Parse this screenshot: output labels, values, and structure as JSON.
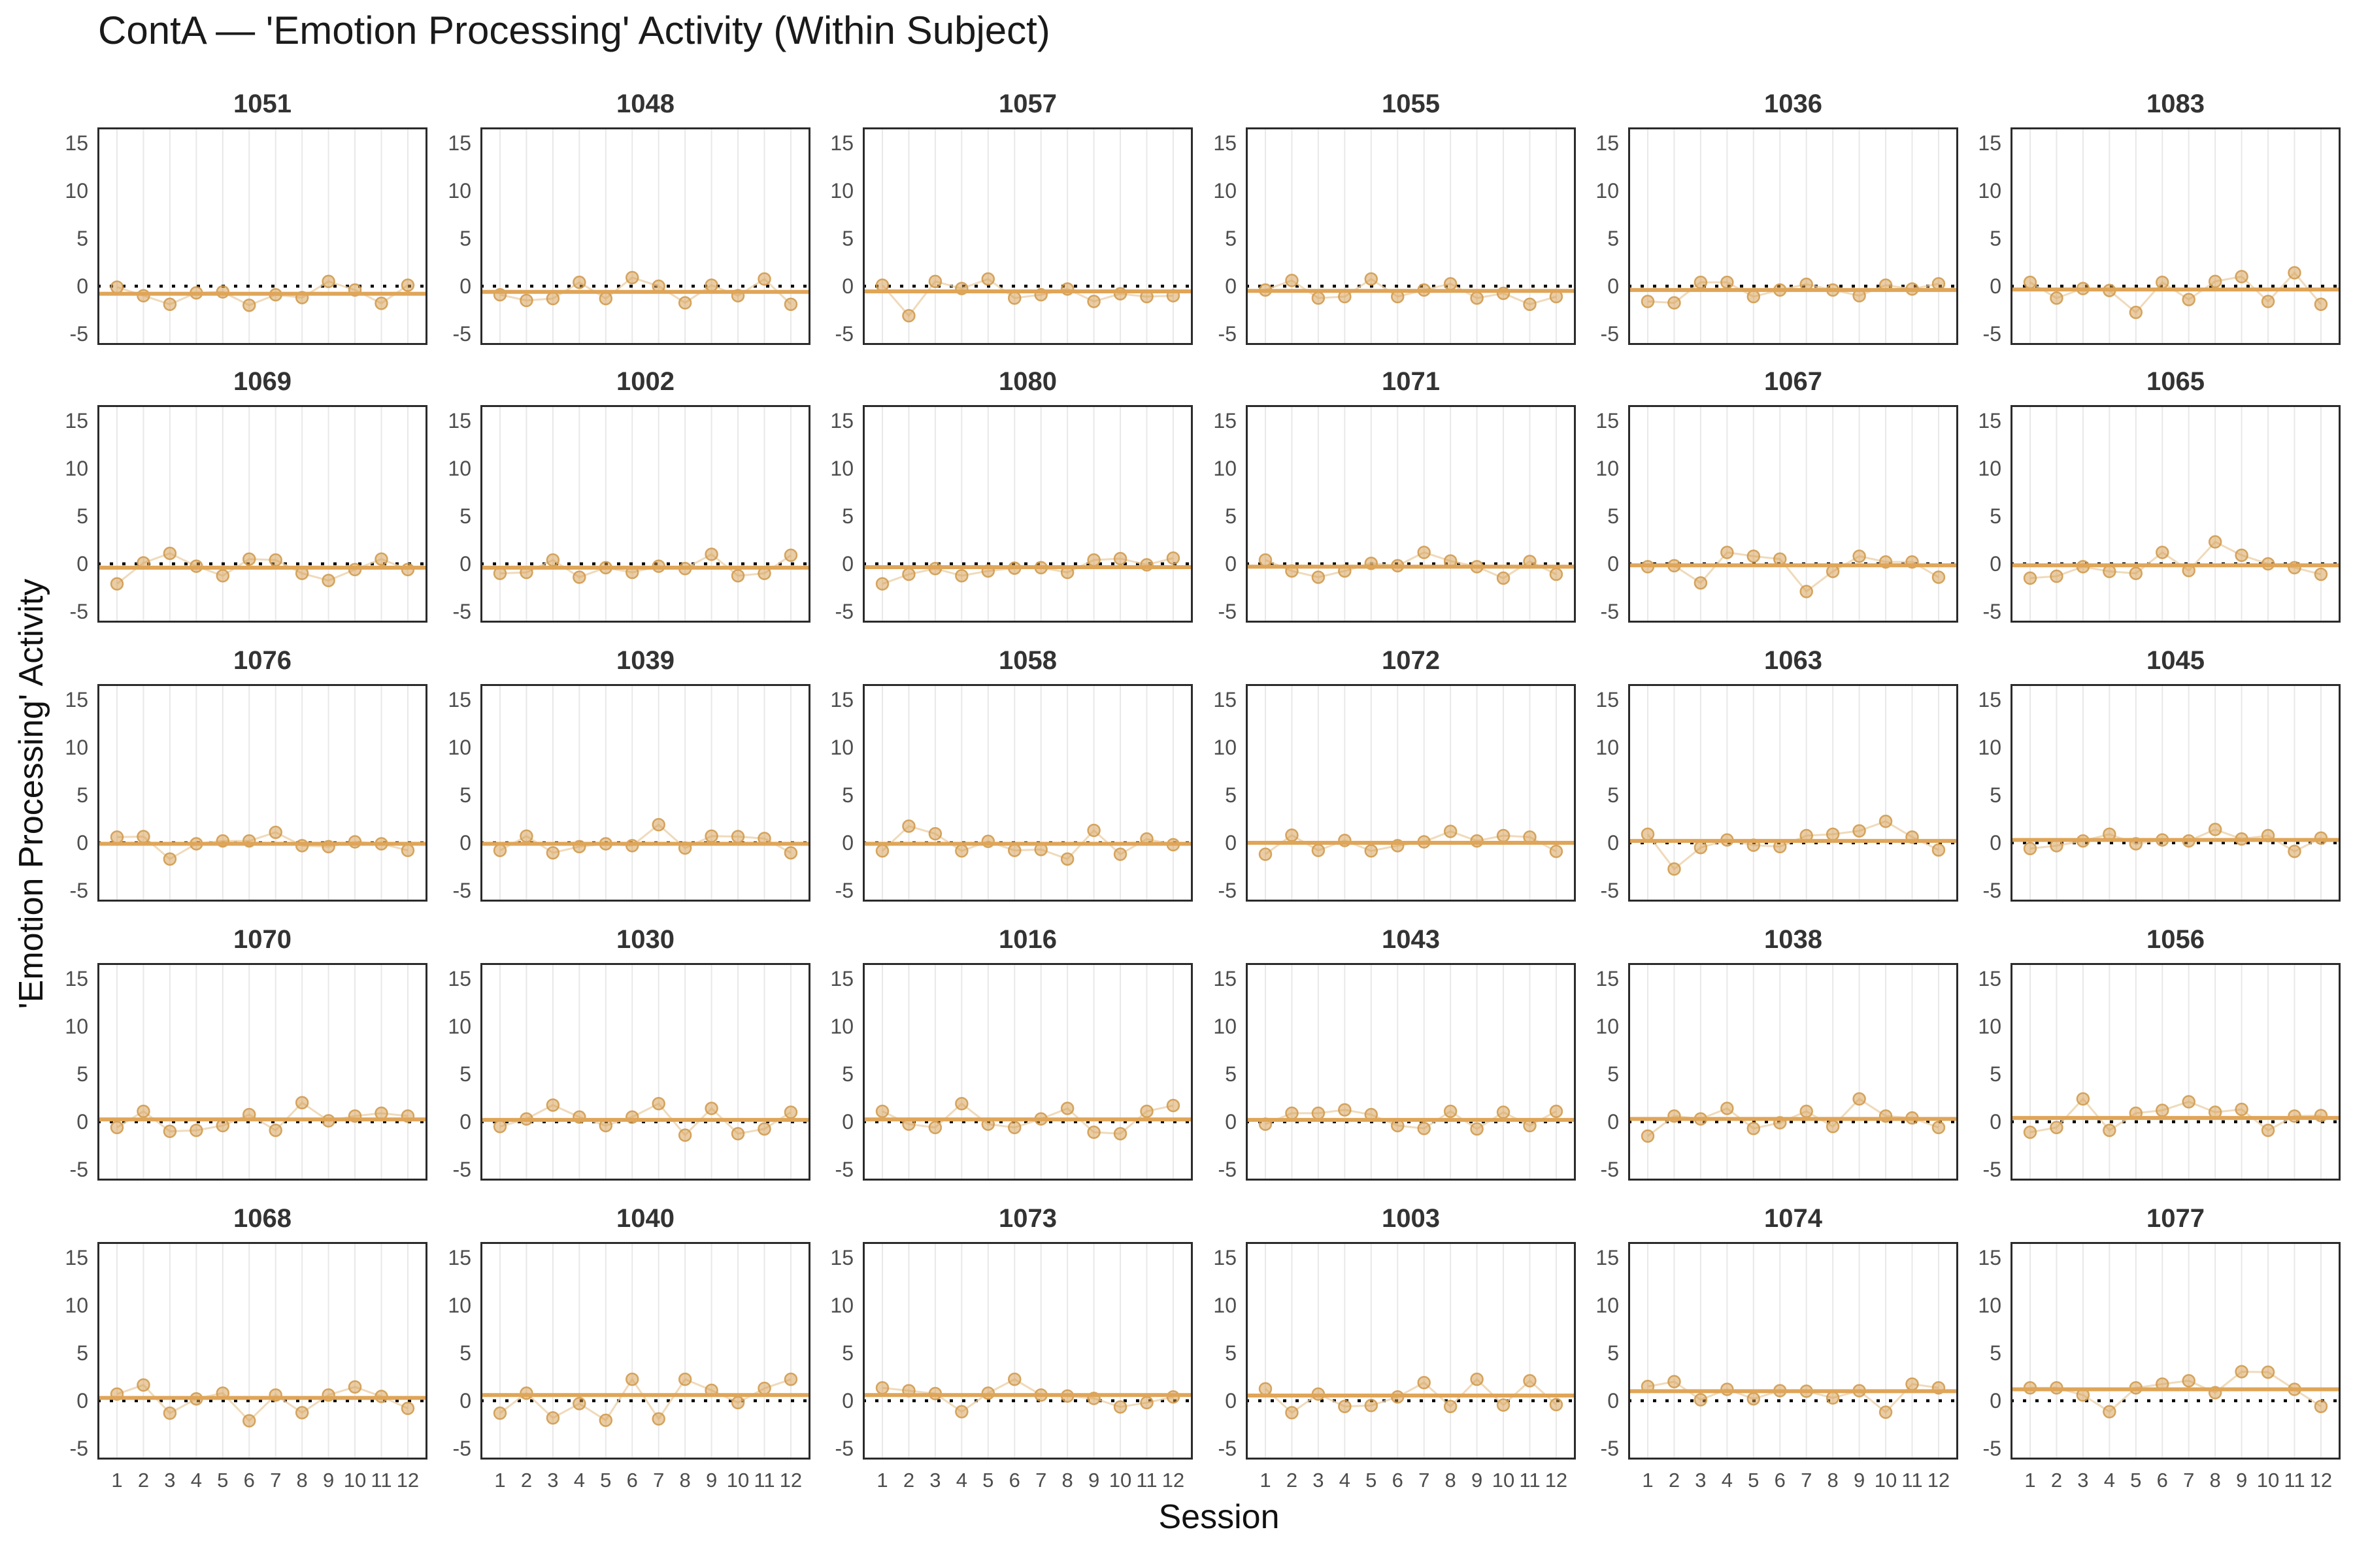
{
  "title": "ContA — 'Emotion Processing' Activity (Within Subject)",
  "chart_data": {
    "type": "scatter",
    "title": "ContA — 'Emotion Processing' Activity (Within Subject)",
    "xlabel": "Session",
    "ylabel": "'Emotion Processing' Activity",
    "x": [
      1,
      2,
      3,
      4,
      5,
      6,
      7,
      8,
      9,
      10,
      11,
      12
    ],
    "x_tick_labels": [
      "1",
      "2",
      "3",
      "4",
      "5",
      "6",
      "7",
      "8",
      "9",
      "10",
      "11",
      "12"
    ],
    "y_ticks": [
      15,
      10,
      5,
      0,
      -5
    ],
    "ylim": [
      -6.2,
      16.6
    ],
    "grid": "vertical-only",
    "legend": "none",
    "reference_line_y": 0,
    "facet_layout": {
      "rows": 5,
      "cols": 6
    },
    "colors": {
      "point_fill": "#d69c4e",
      "point_stroke": "#cf9848",
      "connector": "#e9cda4",
      "trend_line": "#dfa558",
      "zero_line": "#000000",
      "gridline": "#e8e8e8",
      "panel_border": "#2b2b2b",
      "facet_title": "#333333",
      "tick_label": "#4d4d4d",
      "title_color": "#1a1a1a"
    },
    "facets": [
      {
        "id": "1051",
        "trend": -0.8,
        "values": [
          -0.1,
          -1.0,
          -1.9,
          -0.7,
          -0.6,
          -2.0,
          -0.9,
          -1.2,
          0.5,
          -0.4,
          -1.8,
          0.1
        ]
      },
      {
        "id": "1048",
        "trend": -0.6,
        "values": [
          -0.9,
          -1.5,
          -1.3,
          0.4,
          -1.3,
          0.9,
          0.0,
          -1.75,
          0.1,
          -1.0,
          0.75,
          -1.9
        ]
      },
      {
        "id": "1057",
        "trend": -0.55,
        "values": [
          0.1,
          -3.1,
          0.5,
          -0.25,
          0.75,
          -1.25,
          -0.9,
          -0.3,
          -1.6,
          -0.8,
          -1.1,
          -1.0
        ]
      },
      {
        "id": "1055",
        "trend": -0.5,
        "values": [
          -0.4,
          0.6,
          -1.25,
          -1.1,
          0.75,
          -1.1,
          -0.4,
          0.25,
          -1.25,
          -0.75,
          -1.9,
          -1.1
        ]
      },
      {
        "id": "1036",
        "trend": -0.4,
        "values": [
          -1.6,
          -1.75,
          0.4,
          0.4,
          -1.1,
          -0.4,
          0.2,
          -0.4,
          -1.0,
          0.1,
          -0.3,
          0.25
        ]
      },
      {
        "id": "1083",
        "trend": -0.35,
        "values": [
          0.4,
          -1.25,
          -0.25,
          -0.45,
          -2.75,
          0.4,
          -1.4,
          0.5,
          1.0,
          -1.6,
          1.4,
          -1.9
        ]
      },
      {
        "id": "1069",
        "trend": -0.4,
        "values": [
          -2.1,
          0.1,
          1.1,
          -0.25,
          -1.25,
          0.5,
          0.4,
          -1.0,
          -1.75,
          -0.6,
          0.5,
          -0.6
        ]
      },
      {
        "id": "1002",
        "trend": -0.4,
        "values": [
          -1.0,
          -0.9,
          0.4,
          -1.4,
          -0.4,
          -0.9,
          -0.25,
          -0.5,
          1.0,
          -1.25,
          -1.0,
          0.9
        ]
      },
      {
        "id": "1080",
        "trend": -0.35,
        "values": [
          -2.1,
          -1.1,
          -0.5,
          -1.25,
          -0.75,
          -0.45,
          -0.4,
          -0.9,
          0.4,
          0.55,
          -0.1,
          0.6
        ]
      },
      {
        "id": "1071",
        "trend": -0.3,
        "values": [
          0.4,
          -0.75,
          -1.4,
          -0.75,
          0.05,
          -0.2,
          1.2,
          0.3,
          -0.3,
          -1.5,
          0.25,
          -1.1
        ]
      },
      {
        "id": "1067",
        "trend": -0.15,
        "values": [
          -0.3,
          -0.2,
          -2.0,
          1.2,
          0.8,
          0.5,
          -2.9,
          -0.8,
          0.8,
          0.2,
          0.2,
          -1.4
        ]
      },
      {
        "id": "1065",
        "trend": -0.15,
        "values": [
          -1.5,
          -1.3,
          -0.3,
          -0.8,
          -1.0,
          1.2,
          -0.7,
          2.3,
          0.9,
          0.0,
          -0.4,
          -1.1
        ]
      },
      {
        "id": "1076",
        "trend": -0.1,
        "values": [
          0.6,
          0.65,
          -1.7,
          -0.1,
          0.2,
          0.2,
          1.1,
          -0.3,
          -0.4,
          0.1,
          -0.1,
          -0.8
        ]
      },
      {
        "id": "1039",
        "trend": -0.1,
        "values": [
          -0.8,
          0.7,
          -1.05,
          -0.4,
          -0.1,
          -0.3,
          1.9,
          -0.55,
          0.7,
          0.65,
          0.45,
          -1.05
        ]
      },
      {
        "id": "1058",
        "trend": -0.1,
        "values": [
          -0.85,
          1.75,
          0.95,
          -0.85,
          0.15,
          -0.8,
          -0.7,
          -1.7,
          1.3,
          -1.2,
          0.4,
          -0.2
        ]
      },
      {
        "id": "1072",
        "trend": 0.0,
        "values": [
          -1.2,
          0.8,
          -0.8,
          0.25,
          -0.85,
          -0.3,
          0.1,
          1.2,
          0.2,
          0.75,
          0.6,
          -0.9
        ]
      },
      {
        "id": "1063",
        "trend": 0.2,
        "values": [
          0.9,
          -2.75,
          -0.5,
          0.3,
          -0.25,
          -0.4,
          0.75,
          0.9,
          1.25,
          2.25,
          0.6,
          -0.75
        ]
      },
      {
        "id": "1045",
        "trend": 0.3,
        "values": [
          -0.6,
          -0.3,
          0.2,
          0.9,
          -0.1,
          0.3,
          0.2,
          1.4,
          0.4,
          0.75,
          -0.9,
          0.5
        ]
      },
      {
        "id": "1070",
        "trend": 0.25,
        "values": [
          -0.6,
          1.1,
          -1.0,
          -0.9,
          -0.4,
          0.75,
          -0.9,
          2.0,
          0.1,
          0.6,
          0.9,
          0.6
        ]
      },
      {
        "id": "1030",
        "trend": 0.2,
        "values": [
          -0.5,
          0.3,
          1.75,
          0.5,
          -0.4,
          0.5,
          1.9,
          -1.4,
          1.4,
          -1.25,
          -0.75,
          1.0
        ]
      },
      {
        "id": "1016",
        "trend": 0.25,
        "values": [
          1.1,
          -0.25,
          -0.6,
          1.9,
          -0.25,
          -0.6,
          0.3,
          1.4,
          -1.1,
          -1.25,
          1.1,
          1.7
        ]
      },
      {
        "id": "1043",
        "trend": 0.2,
        "values": [
          -0.25,
          0.9,
          0.9,
          1.25,
          0.75,
          -0.4,
          -0.7,
          1.1,
          -0.75,
          1.0,
          -0.4,
          1.1
        ]
      },
      {
        "id": "1038",
        "trend": 0.3,
        "values": [
          -1.5,
          0.6,
          0.3,
          1.4,
          -0.7,
          -0.1,
          1.1,
          -0.5,
          2.4,
          0.6,
          0.4,
          -0.6
        ]
      },
      {
        "id": "1056",
        "trend": 0.4,
        "values": [
          -1.1,
          -0.6,
          2.4,
          -0.9,
          0.9,
          1.2,
          2.1,
          1.0,
          1.3,
          -0.9,
          0.6,
          0.65
        ]
      },
      {
        "id": "1068",
        "trend": 0.3,
        "values": [
          0.7,
          1.65,
          -1.3,
          0.2,
          0.8,
          -2.1,
          0.6,
          -1.25,
          0.6,
          1.45,
          0.45,
          -0.8
        ]
      },
      {
        "id": "1040",
        "trend": 0.6,
        "values": [
          -1.3,
          0.8,
          -1.8,
          -0.3,
          -2.05,
          2.25,
          -1.9,
          2.25,
          1.1,
          -0.2,
          1.3,
          2.25
        ]
      },
      {
        "id": "1073",
        "trend": 0.6,
        "values": [
          1.35,
          1.05,
          0.75,
          -1.15,
          0.8,
          2.25,
          0.6,
          0.5,
          0.25,
          -0.65,
          -0.2,
          0.4
        ]
      },
      {
        "id": "1003",
        "trend": 0.55,
        "values": [
          1.25,
          -1.25,
          0.7,
          -0.6,
          -0.5,
          0.4,
          1.9,
          -0.6,
          2.25,
          -0.45,
          2.1,
          -0.4
        ]
      },
      {
        "id": "1074",
        "trend": 1.0,
        "values": [
          1.5,
          2.0,
          0.1,
          1.2,
          0.2,
          1.05,
          1.0,
          0.3,
          1.05,
          -1.2,
          1.75,
          1.35
        ]
      },
      {
        "id": "1077",
        "trend": 1.2,
        "values": [
          1.35,
          1.35,
          0.6,
          -1.15,
          1.35,
          1.75,
          2.1,
          0.85,
          3.05,
          3.0,
          1.2,
          -0.6
        ]
      }
    ]
  }
}
